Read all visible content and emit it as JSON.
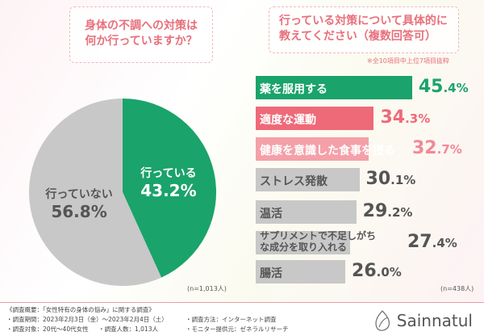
{
  "chart_data": [
    {
      "type": "pie",
      "title": "身体の不調への対策は何か行っていますか？",
      "slices": [
        {
          "label": "行っている",
          "value": 43.2,
          "color": "#1aa36a"
        },
        {
          "label": "行っていない",
          "value": 56.8,
          "color": "#c8c8c8"
        }
      ],
      "n_label": "(n=1,013人)"
    },
    {
      "type": "bar",
      "orientation": "horizontal",
      "title": "行っている対策について具体的に教えてください（複数回答可）",
      "note": "※全10項目中上位7項目抜粋",
      "categories": [
        "薬を服用する",
        "適度な運動",
        "健康を意識した食事を摂る",
        "ストレス発散",
        "温活",
        "サプリメントで不足しがちな成分を取り入れる",
        "腸活"
      ],
      "values": [
        45.4,
        34.3,
        32.7,
        30.1,
        29.2,
        27.4,
        26.0
      ],
      "colors": [
        "#1aa36a",
        "#ee6a78",
        "#f4a0a8",
        "#c8c8c8",
        "#c8c8c8",
        "#c8c8c8",
        "#c8c8c8"
      ],
      "value_colors": [
        "#1aa36a",
        "#ee6a78",
        "#f08a96",
        "#555555",
        "#555555",
        "#555555",
        "#555555"
      ],
      "unit": "%",
      "n_label": "(n=438人)"
    }
  ],
  "footer": {
    "heading": "《調査概要：「女性特有の身体の悩み」に関する調査》",
    "period": "・調査期間：2023年2月3日（金）～2023年2月4日（土）",
    "method": "・調査方法：インターネット調査",
    "target": "・調査対象：20代～40代女性",
    "count": "・調査人数：1,013人",
    "provider": "・モニター提供元：ゼネラルリサーチ"
  },
  "logo": {
    "text": "Sainnatul"
  }
}
